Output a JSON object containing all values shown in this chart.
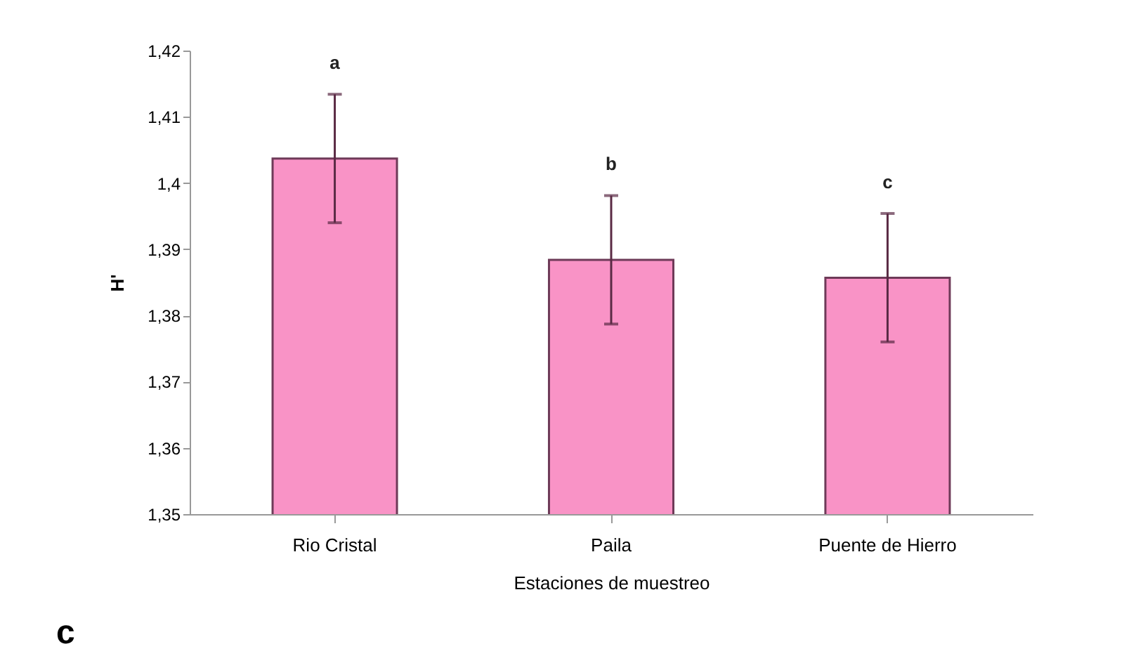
{
  "chart_data": {
    "type": "bar",
    "categories": [
      "Rio Cristal",
      "Paila",
      "Puente de Hierro"
    ],
    "values": [
      1.4037,
      1.3884,
      1.3857
    ],
    "errors": [
      0.0097,
      0.0097,
      0.0097
    ],
    "color": "#f993c6",
    "xlabel": "Estaciones de muestreo",
    "ylabel": "H'",
    "ylim": [
      1.35,
      1.42
    ],
    "yticks": [
      {
        "value": 1.35,
        "label": "1,35"
      },
      {
        "value": 1.36,
        "label": "1,36"
      },
      {
        "value": 1.37,
        "label": "1,37"
      },
      {
        "value": 1.38,
        "label": "1,38"
      },
      {
        "value": 1.39,
        "label": "1,39"
      },
      {
        "value": 1.4,
        "label": "1,4"
      },
      {
        "value": 1.41,
        "label": "1,41"
      },
      {
        "value": 1.42,
        "label": "1,42"
      }
    ],
    "grid": false,
    "annotations": [
      "a",
      "b",
      "c",
      "c"
    ]
  }
}
